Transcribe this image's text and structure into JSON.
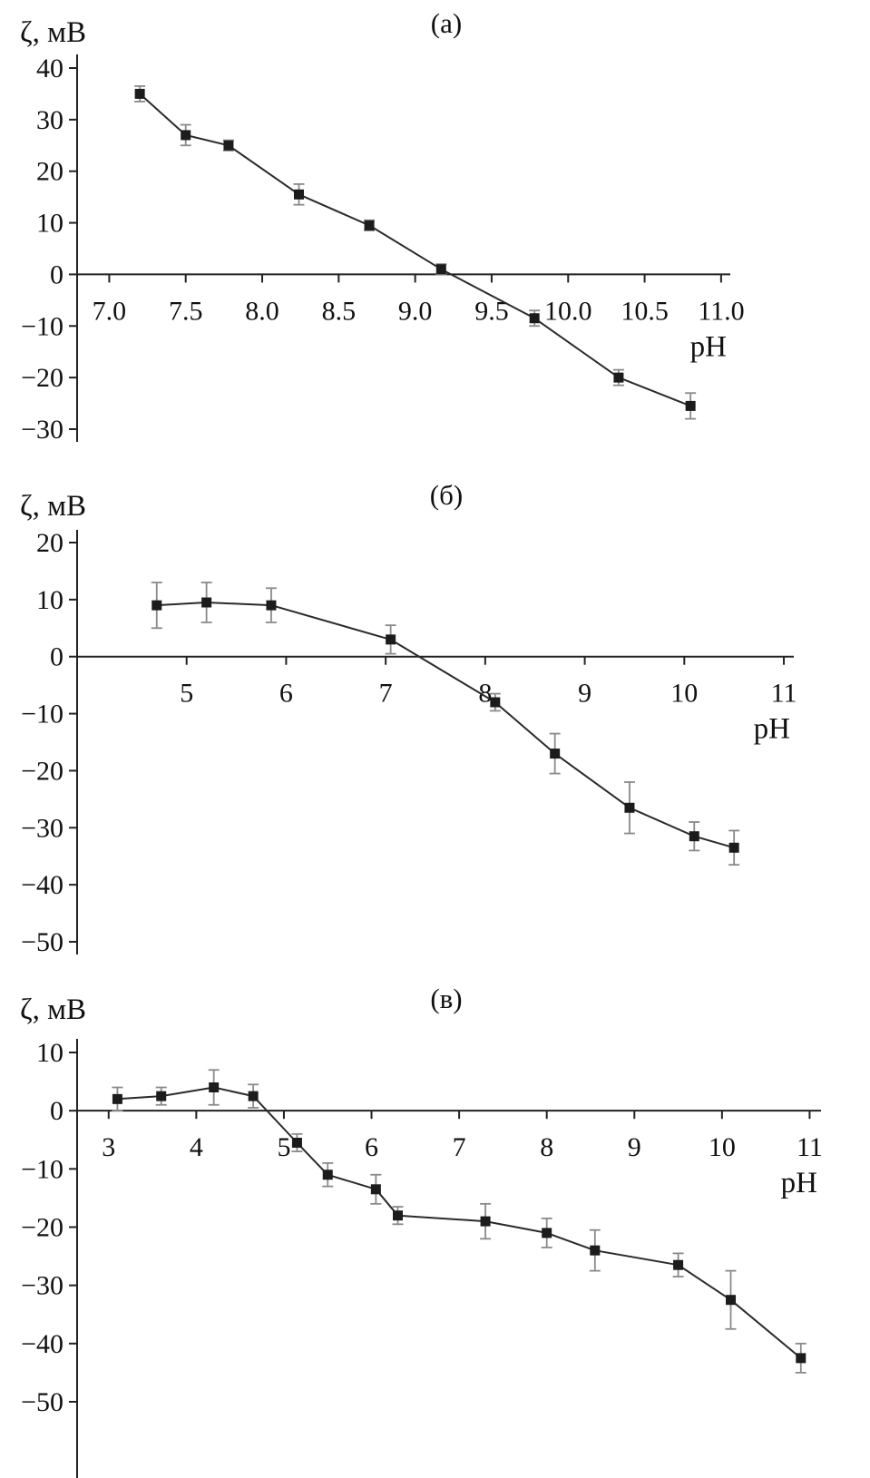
{
  "colors": {
    "marker": "#1c1c1c",
    "line": "#2a2a2a",
    "error_bar": "#8a8a8a",
    "axis": "#222222",
    "text": "#111111"
  },
  "chart_data": [
    {
      "type": "line",
      "title": "(а)",
      "ylabel": "ζ, мВ",
      "xlabel": "pH",
      "xlim": [
        6.79,
        11.06
      ],
      "ylim": [
        -30,
        40
      ],
      "xticks": [
        7.0,
        7.5,
        8.0,
        8.5,
        9.0,
        9.5,
        10.0,
        10.5,
        11.0
      ],
      "xtick_labels": [
        "7.0",
        "7.5",
        "8.0",
        "8.5",
        "9.0",
        "9.5",
        "10.0",
        "10.5",
        "11.0"
      ],
      "yticks": [
        40,
        30,
        20,
        10,
        0,
        -10,
        -20,
        -30
      ],
      "ytick_labels": [
        "40",
        "30",
        "20",
        "10",
        "0",
        "−10",
        "−20",
        "−30"
      ],
      "grid": false,
      "legend": "none",
      "series": [
        {
          "name": "zeta-potential",
          "marker": "square",
          "points": [
            {
              "x": 7.2,
              "y": 35,
              "err": 1.5
            },
            {
              "x": 7.5,
              "y": 27,
              "err": 2
            },
            {
              "x": 7.78,
              "y": 25,
              "err": 1
            },
            {
              "x": 8.24,
              "y": 15.5,
              "err": 2
            },
            {
              "x": 8.7,
              "y": 9.5,
              "err": 1
            },
            {
              "x": 9.17,
              "y": 1,
              "err": 1
            },
            {
              "x": 9.78,
              "y": -8.5,
              "err": 1.5
            },
            {
              "x": 10.33,
              "y": -20,
              "err": 1.5
            },
            {
              "x": 10.8,
              "y": -25.5,
              "err": 2.5
            }
          ]
        }
      ]
    },
    {
      "type": "line",
      "title": "(б)",
      "ylabel": "ζ, мВ",
      "xlabel": "pH",
      "xlim": [
        3.9,
        11.1
      ],
      "ylim": [
        -50,
        20
      ],
      "xticks": [
        5,
        6,
        7,
        8,
        9,
        10,
        11
      ],
      "xtick_labels": [
        "5",
        "6",
        "7",
        "8",
        "9",
        "10",
        "11"
      ],
      "yticks": [
        20,
        10,
        0,
        -10,
        -20,
        -30,
        -40,
        -50
      ],
      "ytick_labels": [
        "20",
        "10",
        "0",
        "−10",
        "−20",
        "−30",
        "−40",
        "−50"
      ],
      "grid": false,
      "legend": "none",
      "series": [
        {
          "name": "zeta-potential",
          "marker": "square",
          "points": [
            {
              "x": 4.7,
              "y": 9,
              "err": 4
            },
            {
              "x": 5.2,
              "y": 9.5,
              "err": 3.5
            },
            {
              "x": 5.85,
              "y": 9,
              "err": 3
            },
            {
              "x": 7.05,
              "y": 3,
              "err": 2.5
            },
            {
              "x": 8.1,
              "y": -8,
              "err": 1.5
            },
            {
              "x": 8.7,
              "y": -17,
              "err": 3.5
            },
            {
              "x": 9.45,
              "y": -26.5,
              "err": 4.5
            },
            {
              "x": 10.1,
              "y": -31.5,
              "err": 2.5
            },
            {
              "x": 10.5,
              "y": -33.5,
              "err": 3
            }
          ]
        }
      ]
    },
    {
      "type": "line",
      "title": "(в)",
      "ylabel": "ζ, мВ",
      "xlabel": "pH",
      "xlim": [
        2.64,
        11.13
      ],
      "ylim": [
        -50,
        10
      ],
      "xticks": [
        3,
        4,
        5,
        6,
        7,
        8,
        9,
        10,
        11
      ],
      "xtick_labels": [
        "3",
        "4",
        "5",
        "6",
        "7",
        "8",
        "9",
        "10",
        "11"
      ],
      "yticks": [
        10,
        0,
        -10,
        -20,
        -30,
        -40,
        -50
      ],
      "ytick_labels": [
        "10",
        "0",
        "−10",
        "−20",
        "−30",
        "−40",
        "−50"
      ],
      "grid": false,
      "legend": "none",
      "series": [
        {
          "name": "zeta-potential",
          "marker": "square",
          "points": [
            {
              "x": 3.1,
              "y": 2,
              "err": 2
            },
            {
              "x": 3.6,
              "y": 2.5,
              "err": 1.5
            },
            {
              "x": 4.2,
              "y": 4,
              "err": 3
            },
            {
              "x": 4.65,
              "y": 2.5,
              "err": 2
            },
            {
              "x": 5.15,
              "y": -5.5,
              "err": 1.5
            },
            {
              "x": 5.5,
              "y": -11,
              "err": 2
            },
            {
              "x": 6.05,
              "y": -13.5,
              "err": 2.5
            },
            {
              "x": 6.3,
              "y": -18,
              "err": 1.5
            },
            {
              "x": 7.3,
              "y": -19,
              "err": 3
            },
            {
              "x": 8.0,
              "y": -21,
              "err": 2.5
            },
            {
              "x": 8.55,
              "y": -24,
              "err": 3.5
            },
            {
              "x": 9.5,
              "y": -26.5,
              "err": 2
            },
            {
              "x": 10.1,
              "y": -32.5,
              "err": 5
            },
            {
              "x": 10.9,
              "y": -42.5,
              "err": 2.5
            }
          ]
        }
      ]
    }
  ]
}
